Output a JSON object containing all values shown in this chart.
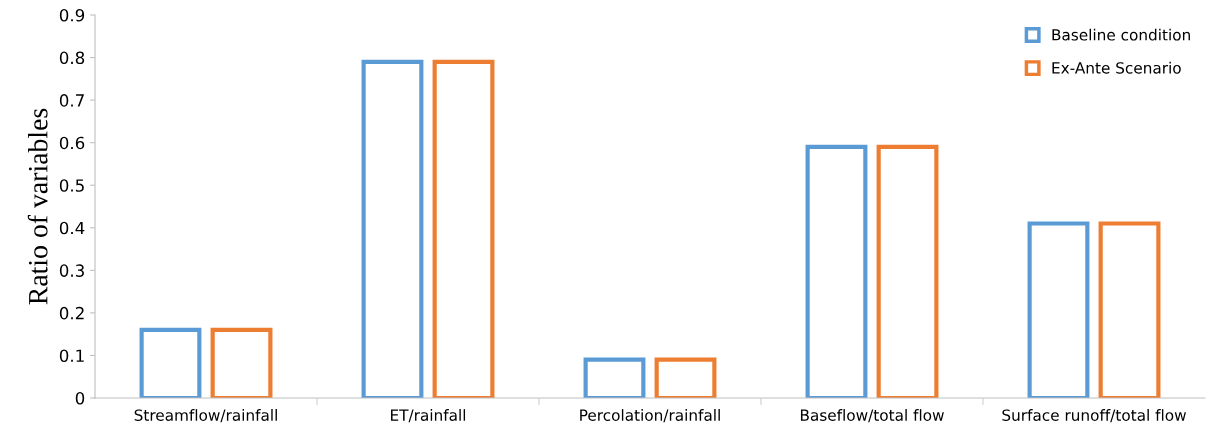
{
  "chart_data": {
    "type": "bar",
    "ylabel": "Ratio of variables",
    "categories": [
      "Streamflow/rainfall",
      "ET/rainfall",
      "Percolation/rainfall",
      "Baseflow/total flow",
      "Surface runoff/total flow"
    ],
    "series": [
      {
        "name": "Baseline condition",
        "color": "#5b9bd5",
        "values": [
          0.16,
          0.79,
          0.09,
          0.59,
          0.41
        ]
      },
      {
        "name": "Ex-Ante Scenario",
        "color": "#ed7d31",
        "values": [
          0.16,
          0.79,
          0.09,
          0.59,
          0.41
        ]
      }
    ],
    "ylim": [
      0,
      0.9
    ],
    "yticks": [
      {
        "value": 0,
        "label": "0"
      },
      0.1,
      0.2,
      0.3,
      0.4,
      0.5,
      0.6,
      0.7,
      0.8,
      0.9
    ],
    "grid": false,
    "legend": "top right"
  }
}
